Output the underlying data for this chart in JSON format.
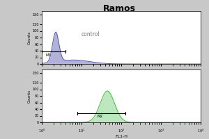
{
  "title": "Ramos",
  "top_histogram_color": "#5555aa",
  "bottom_histogram_color": "#44bb44",
  "xlabel": "FL1-H",
  "ylabel": "Counts",
  "yticks": [
    0,
    20,
    40,
    60,
    80,
    100,
    120,
    150
  ],
  "ytick_labels": [
    "0",
    "20",
    "40",
    "60",
    "80",
    "100",
    "120",
    "150"
  ],
  "xtick_labels": [
    "10°",
    "10¹",
    "10²",
    "10³",
    "10⁴"
  ],
  "xlim_log": [
    0,
    4
  ],
  "ylim": [
    0,
    160
  ],
  "top_label": "control",
  "top_marker": "M1",
  "bottom_marker": "M2",
  "background_color": "#c8c8c8",
  "plot_bg": "#ffffff",
  "top_peak_center": 0.35,
  "top_peak_height": 90,
  "top_peak_width": 0.08,
  "top_tail_center": 0.8,
  "top_tail_height": 12,
  "top_tail_width": 0.4,
  "bottom_peak_center": 1.65,
  "bottom_peak_height": 95,
  "bottom_peak_width": 0.18,
  "m1_x_start_log": 0.0,
  "m1_x_end_log": 0.6,
  "m1_y": 38,
  "m2_x_start_log": 0.9,
  "m2_x_end_log": 2.1,
  "m2_y": 28
}
